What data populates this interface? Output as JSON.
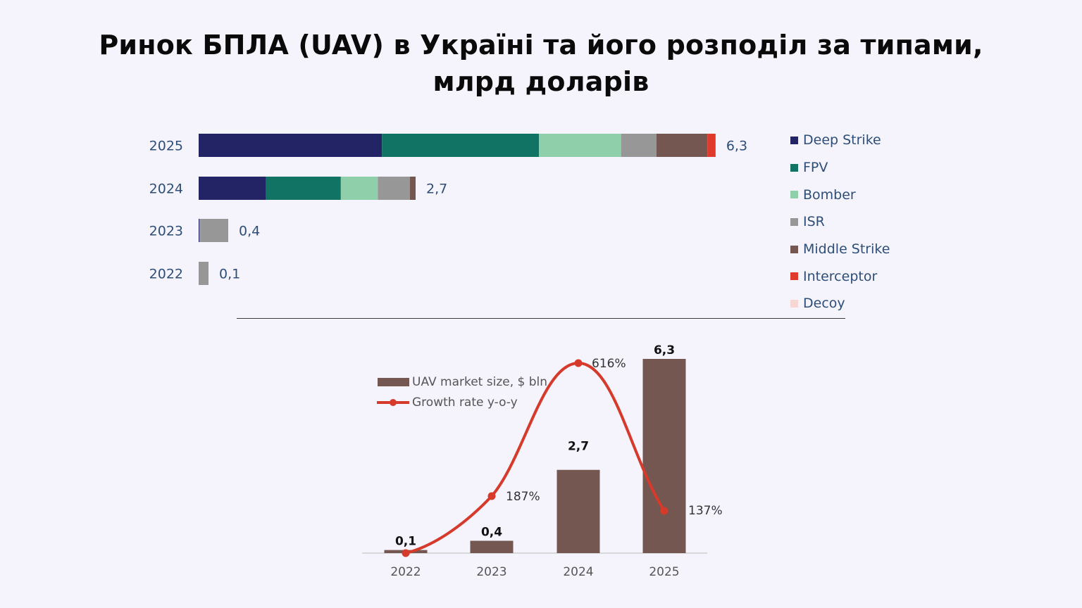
{
  "title_line1": "Ринок БПЛА (UAV) в Україні та його розподіл за типами,",
  "title_line2": "млрд доларів",
  "colors": {
    "Deep Strike": "#232465",
    "FPV": "#117364",
    "Bomber": "#8fcfaa",
    "ISR": "#979797",
    "Middle Strike": "#735750",
    "Interceptor": "#df3a2c",
    "Decoy": "#f6d7d3",
    "line": "#d63a2b",
    "bar": "#735750"
  },
  "chart_data": [
    {
      "type": "bar",
      "orientation": "horizontal",
      "stacked": true,
      "categories": [
        "2025",
        "2024",
        "2023",
        "2022"
      ],
      "series": [
        {
          "name": "Deep Strike",
          "values": [
            2.23,
            0.82,
            0.01,
            0
          ]
        },
        {
          "name": "FPV",
          "values": [
            1.91,
            0.91,
            0,
            0
          ]
        },
        {
          "name": "Bomber",
          "values": [
            1.0,
            0.45,
            0,
            0
          ]
        },
        {
          "name": "ISR",
          "values": [
            0.43,
            0.39,
            0.35,
            0.12
          ]
        },
        {
          "name": "Middle Strike",
          "values": [
            0.62,
            0.07,
            0,
            0
          ]
        },
        {
          "name": "Interceptor",
          "values": [
            0.1,
            0,
            0,
            0
          ]
        },
        {
          "name": "Decoy",
          "values": [
            0,
            0,
            0,
            0
          ]
        }
      ],
      "totals_labels": [
        "6,3",
        "2,7",
        "0,4",
        "0,1"
      ],
      "legend": [
        "Deep Strike",
        "FPV",
        "Bomber",
        "ISR",
        "Middle Strike",
        "Interceptor",
        "Decoy"
      ],
      "legend_position": "right",
      "xlim": [
        0,
        6.3
      ]
    },
    {
      "type": "bar",
      "combo": "bar+line",
      "categories": [
        "2022",
        "2023",
        "2024",
        "2025"
      ],
      "series": [
        {
          "name": "UAV market size, $ bln",
          "values": [
            0.1,
            0.4,
            2.7,
            6.3
          ],
          "labels": [
            "0,1",
            "0,4",
            "2,7",
            "6,3"
          ]
        },
        {
          "name": "Growth rate y-o-y",
          "type": "line",
          "values": [
            null,
            187,
            616,
            137
          ],
          "labels": [
            "",
            "187%",
            "616%",
            "137%"
          ]
        }
      ],
      "ylim": [
        0,
        6.3
      ],
      "legend_position": "top-left",
      "grid": false
    }
  ]
}
